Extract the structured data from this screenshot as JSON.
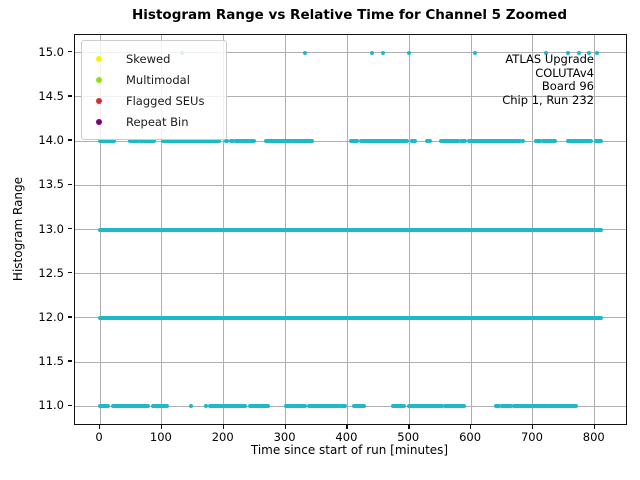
{
  "chart_data": {
    "type": "scatter",
    "title": "Histogram Range vs Relative Time for Channel 5 Zoomed",
    "xlabel": "Time since start of run [minutes]",
    "ylabel": "Histogram Range",
    "xlim": [
      -40.5,
      850.5
    ],
    "ylim": [
      10.8,
      15.2
    ],
    "xticks": [
      0,
      100,
      200,
      300,
      400,
      500,
      600,
      700,
      800
    ],
    "xtick_labels": [
      "0",
      "100",
      "200",
      "300",
      "400",
      "500",
      "600",
      "700",
      "800"
    ],
    "yticks": [
      11.0,
      11.5,
      12.0,
      12.5,
      13.0,
      13.5,
      14.0,
      14.5,
      15.0
    ],
    "ytick_labels": [
      "11.0",
      "11.5",
      "12.0",
      "12.5",
      "13.0",
      "13.5",
      "14.0",
      "14.5",
      "15.0"
    ],
    "grid": true,
    "grid_color": "#b0b0b0",
    "marker_color": "#1db9c9",
    "marker_size_px": 4,
    "legend": {
      "position": "upper-left",
      "items": [
        {
          "label": "Skewed",
          "color": "#f5f500"
        },
        {
          "label": "Multimodal",
          "color": "#8ce312"
        },
        {
          "label": "Flagged SEUs",
          "color": "#d62f32"
        },
        {
          "label": "Repeat Bin",
          "color": "#800080"
        }
      ]
    },
    "annotation": {
      "align": "right",
      "lines": [
        "ATLAS Upgrade",
        "COLUTAv4",
        "Board 96",
        "Chip 1, Run 232"
      ]
    },
    "series": [
      {
        "y": 11,
        "segments": [
          [
            0,
            13
          ],
          [
            21,
            77
          ],
          [
            86,
            109
          ],
          [
            178,
            234
          ],
          [
            243,
            271
          ],
          [
            301,
            308
          ],
          [
            311,
            331
          ],
          [
            338,
            385
          ],
          [
            388,
            396
          ],
          [
            410,
            427
          ],
          [
            474,
            492
          ],
          [
            500,
            553
          ],
          [
            558,
            589
          ],
          [
            640,
            645
          ],
          [
            650,
            665
          ],
          [
            670,
            725
          ],
          [
            727,
            770
          ]
        ],
        "points": [
          147,
          171
        ]
      },
      {
        "y": 12,
        "segments": [
          [
            0,
            810
          ]
        ],
        "points": []
      },
      {
        "y": 13,
        "segments": [
          [
            0,
            810
          ]
        ],
        "points": []
      },
      {
        "y": 14,
        "segments": [
          [
            0,
            22
          ],
          [
            48,
            62
          ],
          [
            66,
            87
          ],
          [
            101,
            192
          ],
          [
            203,
            206
          ],
          [
            212,
            215
          ],
          [
            220,
            228
          ],
          [
            231,
            240
          ],
          [
            243,
            249
          ],
          [
            269,
            311
          ],
          [
            314,
            342
          ],
          [
            405,
            416
          ],
          [
            422,
            439
          ],
          [
            442,
            467
          ],
          [
            469,
            496
          ],
          [
            504,
            510
          ],
          [
            528,
            534
          ],
          [
            552,
            579
          ],
          [
            584,
            590
          ],
          [
            596,
            655
          ],
          [
            657,
            679
          ],
          [
            705,
            711
          ],
          [
            716,
            736
          ],
          [
            757,
            794
          ],
          [
            802,
            810
          ]
        ],
        "points": [
          684
        ]
      },
      {
        "y": 15,
        "segments": [],
        "points": [
          133,
          332,
          440,
          457,
          500,
          607,
          721,
          757,
          774,
          791,
          803
        ]
      }
    ]
  }
}
